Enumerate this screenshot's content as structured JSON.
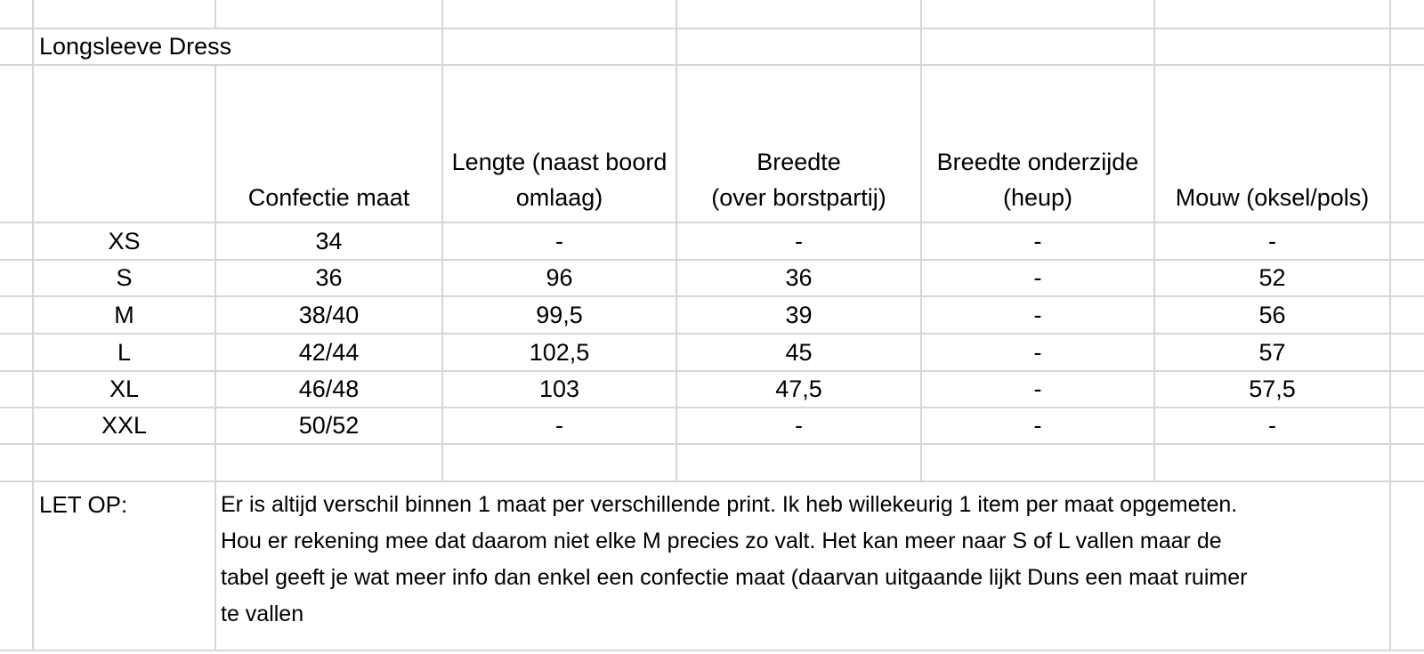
{
  "grid_color": "#d6d6d6",
  "sheet": {
    "title": "Longsleeve Dress"
  },
  "table": {
    "headers": [
      {
        "lines": [
          "Confectie maat"
        ]
      },
      {
        "lines": [
          "Lengte (naast boord",
          "omlaag)"
        ]
      },
      {
        "lines": [
          "Breedte",
          "(over borstpartij)"
        ]
      },
      {
        "lines": [
          "Breedte onderzijde",
          "(heup)"
        ]
      },
      {
        "lines": [
          "Mouw (oksel/pols)"
        ]
      }
    ],
    "rows": [
      {
        "size": "XS",
        "confectie": "34",
        "lengte": "-",
        "breedte": "-",
        "heup": "-",
        "mouw": "-"
      },
      {
        "size": "S",
        "confectie": "36",
        "lengte": "96",
        "breedte": "36",
        "heup": "-",
        "mouw": "52"
      },
      {
        "size": "M",
        "confectie": "38/40",
        "lengte": "99,5",
        "breedte": "39",
        "heup": "-",
        "mouw": "56"
      },
      {
        "size": "L",
        "confectie": "42/44",
        "lengte": "102,5",
        "breedte": "45",
        "heup": "-",
        "mouw": "57"
      },
      {
        "size": "XL",
        "confectie": "46/48",
        "lengte": "103",
        "breedte": "47,5",
        "heup": "-",
        "mouw": "57,5"
      },
      {
        "size": "XXL",
        "confectie": "50/52",
        "lengte": "-",
        "breedte": "-",
        "heup": "-",
        "mouw": "-"
      }
    ]
  },
  "note": {
    "label": "LET OP:",
    "lines": [
      "Er is altijd verschil binnen 1 maat per verschillende print. Ik heb willekeurig 1 item per maat opgemeten.",
      "Hou er rekening mee dat daarom niet elke M precies zo valt. Het kan meer naar S of L vallen maar de",
      "tabel geeft je wat meer info dan enkel een confectie maat (daarvan uitgaande lijkt Duns een maat ruimer",
      "te vallen"
    ]
  }
}
